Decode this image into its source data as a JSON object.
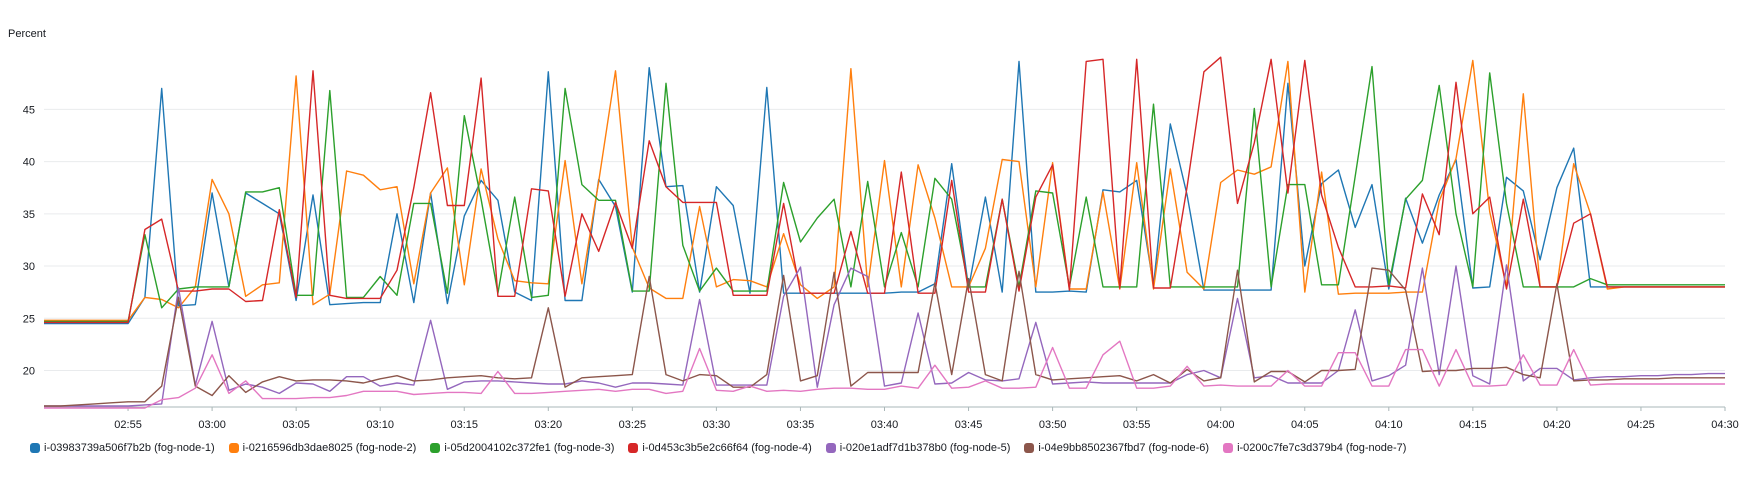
{
  "chart_data": {
    "type": "line",
    "ylabel": "Percent",
    "ylim": [
      16.5,
      50.5
    ],
    "yticks": [
      20,
      25,
      30,
      35,
      40,
      45
    ],
    "xticks": [
      "02:55",
      "03:00",
      "03:05",
      "03:10",
      "03:15",
      "03:20",
      "03:25",
      "03:30",
      "03:35",
      "03:40",
      "03:45",
      "03:50",
      "03:55",
      "04:00",
      "04:05",
      "04:10",
      "04:15",
      "04:20",
      "04:25",
      "04:30"
    ],
    "x_start": "02:50",
    "x_end": "04:30",
    "x_step_min": 1,
    "grid": true,
    "legend_position": "bottom",
    "series": [
      {
        "name": "i-03983739a506f7b2b (fog-node-1)",
        "color": "#1f77b4",
        "values": [
          24.5,
          24.5,
          24.5,
          24.5,
          24.5,
          24.5,
          27.0,
          47.0,
          26.2,
          26.3,
          37.0,
          28.0,
          37.0,
          36.0,
          35.0,
          26.7,
          36.8,
          26.3,
          26.4,
          26.5,
          26.5,
          35.0,
          26.5,
          37.0,
          26.4,
          34.8,
          38.2,
          36.3,
          27.5,
          26.7,
          48.6,
          26.7,
          26.7,
          38.3,
          35.7,
          27.5,
          49.0,
          37.6,
          37.7,
          27.5,
          37.6,
          35.8,
          27.4,
          47.1,
          27.4,
          27.4,
          27.4,
          27.4,
          27.4,
          27.4,
          27.4,
          27.5,
          27.5,
          28.3,
          39.8,
          27.9,
          36.6,
          27.5,
          49.6,
          27.5,
          27.5,
          27.6,
          27.5,
          37.3,
          37.1,
          38.2,
          28.1,
          43.6,
          36.8,
          27.7,
          27.7,
          27.7,
          27.7,
          27.7,
          47.5,
          30.0,
          37.9,
          39.2,
          33.7,
          37.8,
          27.8,
          36.5,
          32.2,
          36.8,
          40.2,
          27.9,
          28.0,
          38.5,
          37.2,
          30.6,
          37.5,
          41.3,
          28.0,
          28.0,
          28.0,
          28.0,
          28.0,
          28.0,
          28.0,
          28.0,
          28.0
        ]
      },
      {
        "name": "i-0216596db3dae8025 (fog-node-2)",
        "color": "#ff7f0e",
        "values": [
          24.8,
          24.8,
          24.8,
          24.8,
          24.8,
          24.8,
          27.0,
          26.8,
          26.0,
          28.0,
          38.3,
          35.0,
          27.1,
          28.2,
          28.4,
          48.2,
          26.3,
          27.3,
          39.1,
          38.7,
          37.3,
          37.6,
          28.3,
          37.0,
          39.4,
          28.2,
          39.3,
          32.6,
          28.6,
          28.4,
          28.3,
          40.1,
          28.3,
          38.1,
          48.7,
          31.8,
          27.9,
          26.9,
          26.9,
          35.7,
          28.0,
          28.7,
          28.6,
          28.0,
          33.1,
          28.2,
          26.9,
          28.0,
          48.9,
          28.0,
          40.1,
          28.0,
          39.7,
          34.6,
          28.0,
          28.0,
          31.7,
          40.2,
          40.0,
          28.0,
          39.9,
          27.8,
          27.8,
          37.1,
          27.8,
          39.9,
          27.8,
          39.3,
          29.4,
          27.8,
          38.0,
          39.2,
          38.8,
          39.5,
          49.6,
          27.5,
          39.0,
          27.3,
          27.4,
          27.4,
          27.4,
          27.5,
          27.5,
          36.2,
          40.3,
          49.7,
          35.2,
          28.0,
          46.5,
          28.0,
          28.0,
          39.8,
          35.0,
          27.8,
          28.0,
          28.0,
          28.0,
          28.0,
          28.0,
          28.0,
          28.0
        ]
      },
      {
        "name": "i-05d2004102c372fe1 (fog-node-3)",
        "color": "#2ca02c",
        "values": [
          24.7,
          24.7,
          24.7,
          24.7,
          24.7,
          24.7,
          33.0,
          26.0,
          27.8,
          28.0,
          28.0,
          28.0,
          37.1,
          37.1,
          37.5,
          27.2,
          27.2,
          46.8,
          27.0,
          27.0,
          29.0,
          27.2,
          36.0,
          36.0,
          27.4,
          44.4,
          36.4,
          27.4,
          36.6,
          27.0,
          27.2,
          47.0,
          37.8,
          36.3,
          36.3,
          27.6,
          27.6,
          47.5,
          32.0,
          27.6,
          29.8,
          27.6,
          27.6,
          27.6,
          38.0,
          32.3,
          34.6,
          36.4,
          28.0,
          38.1,
          28.0,
          33.2,
          28.0,
          38.4,
          36.4,
          28.0,
          28.0,
          36.4,
          28.0,
          37.2,
          37.0,
          28.0,
          36.6,
          28.0,
          28.0,
          28.0,
          45.5,
          28.0,
          28.0,
          28.0,
          28.0,
          28.0,
          45.1,
          28.0,
          37.8,
          37.8,
          28.2,
          28.2,
          38.6,
          49.1,
          28.2,
          36.4,
          38.2,
          47.3,
          35.0,
          28.0,
          48.5,
          36.0,
          28.0,
          28.0,
          28.0,
          28.0,
          28.8,
          28.2,
          28.2,
          28.2,
          28.2,
          28.2,
          28.2,
          28.2,
          28.2
        ]
      },
      {
        "name": "i-0d453c3b5e2c66f64 (fog-node-4)",
        "color": "#d62728",
        "values": [
          24.6,
          24.6,
          24.6,
          24.6,
          24.6,
          24.6,
          33.5,
          34.5,
          27.6,
          27.6,
          27.8,
          27.8,
          26.6,
          26.7,
          35.4,
          27.0,
          48.7,
          27.2,
          26.9,
          26.9,
          26.9,
          29.6,
          37.5,
          46.6,
          35.8,
          35.8,
          48.0,
          27.1,
          27.1,
          37.4,
          37.2,
          27.1,
          35.0,
          31.4,
          36.1,
          31.7,
          42.0,
          37.6,
          36.1,
          36.1,
          36.1,
          27.2,
          27.2,
          27.2,
          36.0,
          27.4,
          27.4,
          27.4,
          33.3,
          27.4,
          27.4,
          39.0,
          27.4,
          27.4,
          38.2,
          27.5,
          27.5,
          36.4,
          27.6,
          36.6,
          39.7,
          27.7,
          49.6,
          49.8,
          27.9,
          49.8,
          27.9,
          27.9,
          37.6,
          48.6,
          50.0,
          36.0,
          41.8,
          49.8,
          37.0,
          49.7,
          36.8,
          31.8,
          28.0,
          28.0,
          28.1,
          27.9,
          36.9,
          33.0,
          47.6,
          35.0,
          36.6,
          27.8,
          36.4,
          28.0,
          28.0,
          34.1,
          35.0,
          28.0,
          28.0,
          28.0,
          28.0,
          28.0,
          28.0,
          28.0,
          28.0
        ]
      },
      {
        "name": "i-020e1adf7d1b378b0 (fog-node-5)",
        "color": "#9467bd",
        "values": [
          16.6,
          16.6,
          16.6,
          16.6,
          16.6,
          16.6,
          16.7,
          16.8,
          27.9,
          18.6,
          24.7,
          18.1,
          18.7,
          18.4,
          17.8,
          18.8,
          18.7,
          18.0,
          19.4,
          19.4,
          18.5,
          18.8,
          18.6,
          24.8,
          18.2,
          18.9,
          19.0,
          19.0,
          18.9,
          18.8,
          18.7,
          18.7,
          19.0,
          18.8,
          18.4,
          18.8,
          18.8,
          18.7,
          18.6,
          26.8,
          18.6,
          18.6,
          18.6,
          18.6,
          27.1,
          29.9,
          18.4,
          26.3,
          29.8,
          29.0,
          18.5,
          18.8,
          25.5,
          18.7,
          18.8,
          19.8,
          19.1,
          19.0,
          19.2,
          24.6,
          18.7,
          18.8,
          18.9,
          18.8,
          18.8,
          18.8,
          18.8,
          18.8,
          19.6,
          20.0,
          19.3,
          26.9,
          19.3,
          19.5,
          18.8,
          18.8,
          18.8,
          20.0,
          25.8,
          19.0,
          19.5,
          20.5,
          29.8,
          19.6,
          30.0,
          19.5,
          18.7,
          30.1,
          19.0,
          20.2,
          20.2,
          19.1,
          19.3,
          19.4,
          19.4,
          19.5,
          19.5,
          19.6,
          19.6,
          19.7,
          19.7
        ]
      },
      {
        "name": "i-04e9bb8502367fbd7 (fog-node-6)",
        "color": "#8c564b",
        "values": [
          16.6,
          16.6,
          16.7,
          16.8,
          16.9,
          17.0,
          17.0,
          18.5,
          27.0,
          18.5,
          17.6,
          19.5,
          17.9,
          18.9,
          19.4,
          19.0,
          19.1,
          19.1,
          19.0,
          18.8,
          19.2,
          19.5,
          19.0,
          19.1,
          19.3,
          19.4,
          19.5,
          19.3,
          19.2,
          19.3,
          26.0,
          18.4,
          19.3,
          19.4,
          19.5,
          19.6,
          29.0,
          19.6,
          19.0,
          19.6,
          19.5,
          18.4,
          18.4,
          19.6,
          29.1,
          19.0,
          19.5,
          29.4,
          18.5,
          19.8,
          19.8,
          19.8,
          19.8,
          28.4,
          19.6,
          28.8,
          19.6,
          19.0,
          29.5,
          19.6,
          19.1,
          19.2,
          19.3,
          19.4,
          19.5,
          19.0,
          19.6,
          18.8,
          20.1,
          19.0,
          19.3,
          29.6,
          18.9,
          19.9,
          19.9,
          18.9,
          20.0,
          20.0,
          20.1,
          29.8,
          29.6,
          27.7,
          19.9,
          20.0,
          20.0,
          20.2,
          20.2,
          20.3,
          19.6,
          19.3,
          28.3,
          19.0,
          19.1,
          19.1,
          19.2,
          19.2,
          19.2,
          19.3,
          19.3,
          19.3,
          19.3
        ]
      },
      {
        "name": "i-0200c7fe7c3d379b4 (fog-node-7)",
        "color": "#e377c2",
        "values": [
          16.4,
          16.4,
          16.4,
          16.4,
          16.4,
          16.4,
          16.4,
          17.2,
          17.4,
          18.3,
          21.5,
          17.8,
          19.0,
          17.3,
          17.3,
          17.3,
          17.4,
          17.4,
          17.6,
          18.0,
          18.0,
          18.0,
          17.7,
          17.8,
          17.9,
          17.9,
          17.8,
          19.9,
          17.8,
          17.8,
          17.9,
          18.0,
          18.1,
          18.2,
          18.0,
          18.2,
          18.2,
          17.8,
          18.0,
          22.1,
          18.1,
          18.0,
          18.5,
          18.0,
          18.1,
          18.0,
          18.2,
          18.3,
          18.3,
          18.2,
          18.2,
          18.5,
          18.3,
          20.5,
          18.3,
          18.4,
          19.0,
          18.3,
          18.3,
          18.4,
          22.2,
          18.3,
          18.3,
          21.5,
          22.8,
          18.3,
          18.3,
          18.5,
          20.4,
          18.5,
          18.6,
          18.5,
          18.5,
          18.5,
          20.0,
          18.5,
          18.5,
          21.7,
          21.7,
          18.5,
          18.5,
          22.0,
          22.0,
          18.5,
          22.0,
          18.5,
          18.5,
          18.6,
          21.5,
          18.6,
          18.6,
          22.0,
          18.6,
          18.7,
          18.7,
          18.7,
          18.7,
          18.7,
          18.7,
          18.7,
          18.7
        ]
      }
    ]
  }
}
